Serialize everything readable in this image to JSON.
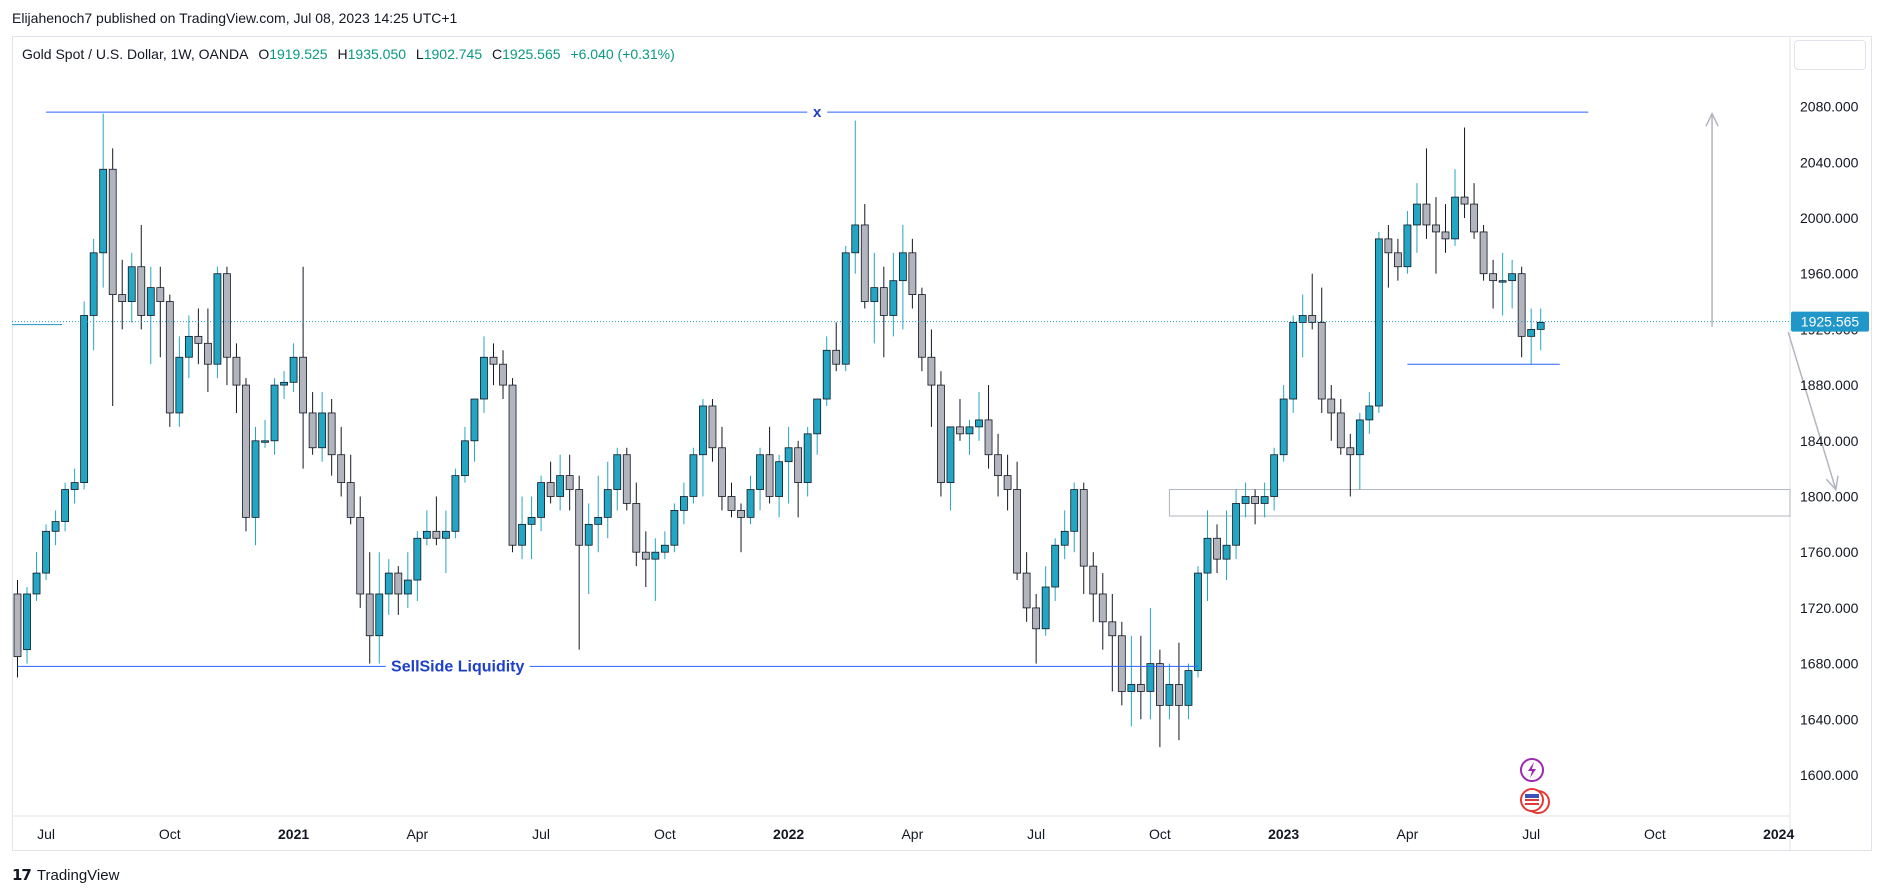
{
  "header": {
    "published_text": "Elijahenoch7 published on TradingView.com, Jul 08, 2023 14:25 UTC+1"
  },
  "legend": {
    "symbol": "Gold Spot / U.S. Dollar, 1W, OANDA",
    "o_label": "O",
    "o_value": "1919.525",
    "h_label": "H",
    "h_value": "1935.050",
    "l_label": "L",
    "l_value": "1902.745",
    "c_label": "C",
    "c_value": "1925.565",
    "change": "+6.040 (+0.31%)"
  },
  "footer": {
    "brand": "TradingView",
    "logo_text": "17"
  },
  "colors": {
    "up": "#22a6c3",
    "down": "#b2b5be",
    "outline": "#131722",
    "line": "#2962ff",
    "price_label": "#2196c9",
    "arrow": "#b2b5be"
  },
  "chart_data": {
    "type": "candlestick",
    "title": "Gold Spot / U.S. Dollar, 1W, OANDA",
    "ylim": [
      1580,
      2120
    ],
    "yticks": [
      1600,
      1640,
      1680,
      1720,
      1760,
      1800,
      1840,
      1880,
      1920,
      1960,
      2000,
      2040,
      2080
    ],
    "ytick_labels": [
      "1600.000",
      "1640.000",
      "1680.000",
      "1720.000",
      "1760.000",
      "1800.000",
      "1840.000",
      "1880.000",
      "1920.000",
      "1960.000",
      "2000.000",
      "2040.000",
      "2080.000"
    ],
    "xticks": [
      {
        "label": "Jul",
        "bold": false,
        "week": 3
      },
      {
        "label": "Oct",
        "bold": false,
        "week": 16
      },
      {
        "label": "2021",
        "bold": true,
        "week": 29
      },
      {
        "label": "Apr",
        "bold": false,
        "week": 42
      },
      {
        "label": "Jul",
        "bold": false,
        "week": 55
      },
      {
        "label": "Oct",
        "bold": false,
        "week": 68
      },
      {
        "label": "2022",
        "bold": true,
        "week": 81
      },
      {
        "label": "Apr",
        "bold": false,
        "week": 94
      },
      {
        "label": "Jul",
        "bold": false,
        "week": 107
      },
      {
        "label": "Oct",
        "bold": false,
        "week": 120
      },
      {
        "label": "2023",
        "bold": true,
        "week": 133
      },
      {
        "label": "Apr",
        "bold": false,
        "week": 146
      },
      {
        "label": "Jul",
        "bold": false,
        "week": 159
      },
      {
        "label": "Oct",
        "bold": false,
        "week": 172
      },
      {
        "label": "2024",
        "bold": true,
        "week": 185
      }
    ],
    "current_price": 1925.565,
    "current_price_label": "1925.565",
    "ohlc": [
      [
        1730,
        1740,
        1670,
        1685
      ],
      [
        1690,
        1735,
        1680,
        1730
      ],
      [
        1730,
        1760,
        1725,
        1745
      ],
      [
        1745,
        1780,
        1740,
        1775
      ],
      [
        1775,
        1790,
        1765,
        1782
      ],
      [
        1782,
        1810,
        1775,
        1805
      ],
      [
        1805,
        1820,
        1795,
        1810
      ],
      [
        1810,
        1940,
        1805,
        1930
      ],
      [
        1930,
        1985,
        1905,
        1975
      ],
      [
        1975,
        2075,
        1950,
        2035
      ],
      [
        2035,
        2050,
        1865,
        1945
      ],
      [
        1945,
        1970,
        1920,
        1940
      ],
      [
        1940,
        1975,
        1925,
        1965
      ],
      [
        1965,
        1995,
        1920,
        1930
      ],
      [
        1930,
        1965,
        1895,
        1950
      ],
      [
        1950,
        1965,
        1900,
        1940
      ],
      [
        1940,
        1945,
        1850,
        1860
      ],
      [
        1860,
        1915,
        1850,
        1900
      ],
      [
        1900,
        1930,
        1885,
        1915
      ],
      [
        1915,
        1935,
        1895,
        1910
      ],
      [
        1910,
        1935,
        1875,
        1895
      ],
      [
        1895,
        1965,
        1885,
        1960
      ],
      [
        1960,
        1965,
        1880,
        1900
      ],
      [
        1900,
        1910,
        1860,
        1880
      ],
      [
        1880,
        1885,
        1775,
        1785
      ],
      [
        1785,
        1850,
        1765,
        1840
      ],
      [
        1840,
        1855,
        1835,
        1840
      ],
      [
        1840,
        1885,
        1830,
        1880
      ],
      [
        1880,
        1890,
        1870,
        1882
      ],
      [
        1882,
        1910,
        1875,
        1900
      ],
      [
        1900,
        1965,
        1820,
        1860
      ],
      [
        1860,
        1875,
        1830,
        1835
      ],
      [
        1835,
        1875,
        1825,
        1860
      ],
      [
        1860,
        1870,
        1815,
        1830
      ],
      [
        1830,
        1850,
        1800,
        1810
      ],
      [
        1810,
        1830,
        1780,
        1785
      ],
      [
        1785,
        1800,
        1720,
        1730
      ],
      [
        1730,
        1760,
        1680,
        1700
      ],
      [
        1700,
        1760,
        1680,
        1730
      ],
      [
        1730,
        1755,
        1715,
        1745
      ],
      [
        1745,
        1750,
        1715,
        1730
      ],
      [
        1730,
        1760,
        1720,
        1740
      ],
      [
        1740,
        1775,
        1725,
        1770
      ],
      [
        1770,
        1790,
        1765,
        1775
      ],
      [
        1775,
        1800,
        1765,
        1770
      ],
      [
        1770,
        1790,
        1745,
        1775
      ],
      [
        1775,
        1820,
        1770,
        1815
      ],
      [
        1815,
        1850,
        1810,
        1840
      ],
      [
        1840,
        1870,
        1825,
        1870
      ],
      [
        1870,
        1915,
        1860,
        1900
      ],
      [
        1900,
        1910,
        1880,
        1895
      ],
      [
        1895,
        1905,
        1870,
        1880
      ],
      [
        1880,
        1885,
        1760,
        1765
      ],
      [
        1765,
        1800,
        1755,
        1780
      ],
      [
        1780,
        1800,
        1755,
        1785
      ],
      [
        1785,
        1815,
        1775,
        1810
      ],
      [
        1810,
        1825,
        1795,
        1800
      ],
      [
        1800,
        1830,
        1790,
        1815
      ],
      [
        1815,
        1830,
        1790,
        1805
      ],
      [
        1805,
        1815,
        1690,
        1765
      ],
      [
        1765,
        1795,
        1730,
        1780
      ],
      [
        1780,
        1815,
        1760,
        1785
      ],
      [
        1785,
        1825,
        1770,
        1805
      ],
      [
        1805,
        1835,
        1790,
        1830
      ],
      [
        1830,
        1835,
        1790,
        1795
      ],
      [
        1795,
        1810,
        1750,
        1760
      ],
      [
        1760,
        1775,
        1735,
        1755
      ],
      [
        1755,
        1770,
        1725,
        1760
      ],
      [
        1760,
        1775,
        1755,
        1765
      ],
      [
        1765,
        1795,
        1760,
        1790
      ],
      [
        1790,
        1810,
        1780,
        1800
      ],
      [
        1800,
        1835,
        1795,
        1830
      ],
      [
        1830,
        1870,
        1800,
        1865
      ],
      [
        1865,
        1870,
        1825,
        1835
      ],
      [
        1835,
        1850,
        1790,
        1800
      ],
      [
        1800,
        1810,
        1785,
        1790
      ],
      [
        1790,
        1795,
        1760,
        1785
      ],
      [
        1785,
        1815,
        1780,
        1805
      ],
      [
        1805,
        1835,
        1790,
        1830
      ],
      [
        1830,
        1850,
        1795,
        1800
      ],
      [
        1800,
        1830,
        1785,
        1825
      ],
      [
        1825,
        1850,
        1795,
        1835
      ],
      [
        1835,
        1840,
        1785,
        1810
      ],
      [
        1810,
        1850,
        1800,
        1845
      ],
      [
        1845,
        1870,
        1830,
        1870
      ],
      [
        1870,
        1915,
        1865,
        1905
      ],
      [
        1905,
        1925,
        1890,
        1895
      ],
      [
        1895,
        1980,
        1890,
        1975
      ],
      [
        1975,
        2070,
        1960,
        1995
      ],
      [
        1995,
        2010,
        1935,
        1940
      ],
      [
        1940,
        1975,
        1910,
        1950
      ],
      [
        1950,
        1965,
        1900,
        1930
      ],
      [
        1930,
        1975,
        1915,
        1955
      ],
      [
        1955,
        1995,
        1920,
        1975
      ],
      [
        1975,
        1985,
        1935,
        1945
      ],
      [
        1945,
        1950,
        1890,
        1900
      ],
      [
        1900,
        1920,
        1850,
        1880
      ],
      [
        1880,
        1890,
        1800,
        1810
      ],
      [
        1810,
        1850,
        1790,
        1850
      ],
      [
        1850,
        1870,
        1840,
        1845
      ],
      [
        1845,
        1855,
        1830,
        1850
      ],
      [
        1850,
        1875,
        1840,
        1855
      ],
      [
        1855,
        1880,
        1820,
        1830
      ],
      [
        1830,
        1845,
        1800,
        1815
      ],
      [
        1815,
        1830,
        1790,
        1805
      ],
      [
        1805,
        1825,
        1740,
        1745
      ],
      [
        1745,
        1760,
        1710,
        1720
      ],
      [
        1720,
        1730,
        1680,
        1705
      ],
      [
        1705,
        1750,
        1700,
        1735
      ],
      [
        1735,
        1770,
        1725,
        1765
      ],
      [
        1765,
        1790,
        1755,
        1775
      ],
      [
        1775,
        1810,
        1760,
        1805
      ],
      [
        1805,
        1810,
        1730,
        1750
      ],
      [
        1750,
        1760,
        1710,
        1730
      ],
      [
        1730,
        1745,
        1690,
        1710
      ],
      [
        1710,
        1730,
        1660,
        1700
      ],
      [
        1700,
        1710,
        1650,
        1660
      ],
      [
        1660,
        1700,
        1635,
        1665
      ],
      [
        1665,
        1700,
        1640,
        1660
      ],
      [
        1660,
        1720,
        1640,
        1680
      ],
      [
        1680,
        1690,
        1620,
        1650
      ],
      [
        1650,
        1680,
        1640,
        1665
      ],
      [
        1665,
        1695,
        1625,
        1650
      ],
      [
        1650,
        1680,
        1640,
        1675
      ],
      [
        1675,
        1750,
        1670,
        1745
      ],
      [
        1745,
        1790,
        1725,
        1770
      ],
      [
        1770,
        1780,
        1745,
        1755
      ],
      [
        1755,
        1790,
        1740,
        1765
      ],
      [
        1765,
        1805,
        1755,
        1795
      ],
      [
        1795,
        1810,
        1785,
        1800
      ],
      [
        1800,
        1805,
        1780,
        1795
      ],
      [
        1795,
        1810,
        1785,
        1800
      ],
      [
        1800,
        1835,
        1790,
        1830
      ],
      [
        1830,
        1880,
        1825,
        1870
      ],
      [
        1870,
        1930,
        1860,
        1925
      ],
      [
        1925,
        1945,
        1900,
        1930
      ],
      [
        1930,
        1960,
        1920,
        1925
      ],
      [
        1925,
        1950,
        1860,
        1870
      ],
      [
        1870,
        1880,
        1840,
        1860
      ],
      [
        1860,
        1870,
        1830,
        1835
      ],
      [
        1835,
        1845,
        1800,
        1830
      ],
      [
        1830,
        1860,
        1805,
        1855
      ],
      [
        1855,
        1875,
        1845,
        1865
      ],
      [
        1865,
        1990,
        1860,
        1985
      ],
      [
        1985,
        1995,
        1950,
        1975
      ],
      [
        1975,
        1985,
        1955,
        1965
      ],
      [
        1965,
        2005,
        1960,
        1995
      ],
      [
        1995,
        2025,
        1975,
        2010
      ],
      [
        2010,
        2050,
        1985,
        1995
      ],
      [
        1995,
        2015,
        1960,
        1990
      ],
      [
        1990,
        2010,
        1975,
        1985
      ],
      [
        1985,
        2035,
        1980,
        2015
      ],
      [
        2015,
        2065,
        2000,
        2010
      ],
      [
        2010,
        2025,
        1985,
        1990
      ],
      [
        1990,
        1995,
        1955,
        1960
      ],
      [
        1960,
        1970,
        1935,
        1955
      ],
      [
        1955,
        1975,
        1930,
        1955
      ],
      [
        1955,
        1970,
        1935,
        1960
      ],
      [
        1960,
        1965,
        1900,
        1915
      ],
      [
        1915,
        1935,
        1895,
        1920
      ],
      [
        1920,
        1935,
        1905,
        1925
      ]
    ],
    "annotations": [
      {
        "type": "hline",
        "label": "x",
        "price": 2076,
        "from_week": 3,
        "to_week": 165
      },
      {
        "type": "hline",
        "label": "SellSide Liquidity",
        "price": 1678,
        "from_week": 0,
        "to_week": 124
      },
      {
        "type": "hline",
        "label": "",
        "price": 1895,
        "from_week": 146,
        "to_week": 162
      },
      {
        "type": "zone",
        "label": "",
        "price_top": 1805,
        "price_bottom": 1786,
        "from_week": 121,
        "to_week": 200
      },
      {
        "type": "arrow",
        "label": "",
        "from_price": 1922,
        "to_price": 2075,
        "from_week": 178,
        "to_week": 178
      },
      {
        "type": "arrow",
        "label": "",
        "from_price": 1918,
        "to_price": 1805,
        "from_week": 186,
        "to_week": 191
      }
    ]
  }
}
